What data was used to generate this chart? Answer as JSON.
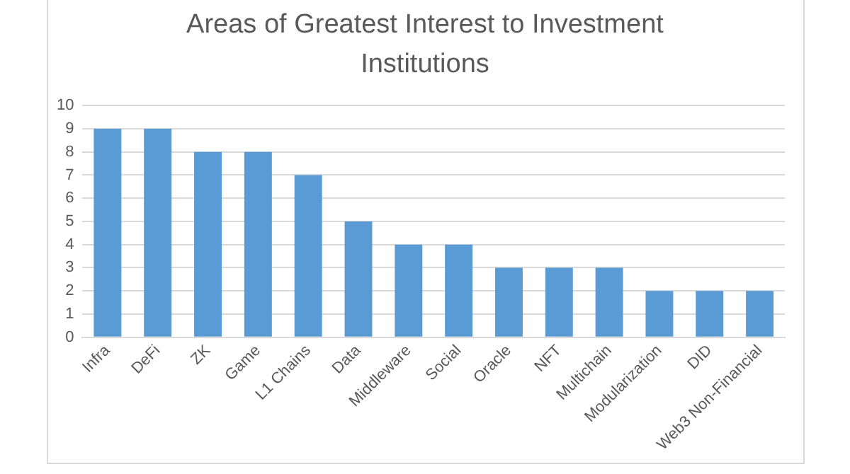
{
  "chart_data": {
    "type": "bar",
    "title": "Areas of Greatest Interest to Investment Institutions",
    "categories": [
      "Infra",
      "DeFi",
      "ZK",
      "Game",
      "L1 Chains",
      "Data",
      "Middleware",
      "Social",
      "Oracle",
      "NFT",
      "Multichain",
      "Modularization",
      "DID",
      "Web3 Non-Financial"
    ],
    "values": [
      9,
      9,
      8,
      8,
      7,
      5,
      4,
      4,
      3,
      3,
      3,
      2,
      2,
      2
    ],
    "color": "#5b9bd5",
    "ylim": [
      0,
      10
    ],
    "yticks": [
      0,
      1,
      2,
      3,
      4,
      5,
      6,
      7,
      8,
      9,
      10
    ],
    "grid": "y",
    "legend": false
  }
}
